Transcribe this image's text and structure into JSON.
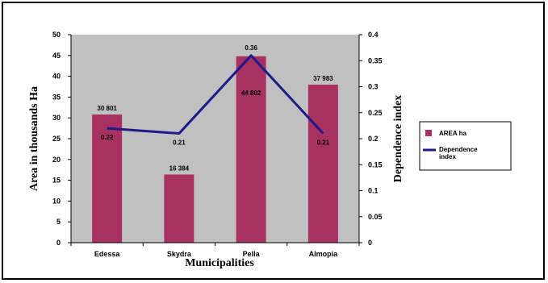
{
  "chart_data": {
    "type": "bar",
    "categories": [
      "Edessa",
      "Skydra",
      "Pella",
      "Almopia"
    ],
    "series": [
      {
        "name": "AREA ha",
        "kind": "bar",
        "axis": "left",
        "color": "#a83162",
        "values": [
          30.801,
          16.384,
          44.802,
          37.983
        ],
        "labels": [
          "30 801",
          "16 384",
          "44 802",
          "37 983"
        ]
      },
      {
        "name": "Dependence index",
        "kind": "line",
        "axis": "right",
        "color": "#1f1a8a",
        "values": [
          0.22,
          0.21,
          0.36,
          0.21
        ],
        "labels": [
          "0.22",
          "0.21",
          "0.36",
          "0.21"
        ]
      }
    ],
    "xlabel": "Municipalities",
    "ylabel": "Area in thousands Ha",
    "y2label": "Dependence index",
    "ylim": [
      0,
      50
    ],
    "y2lim": [
      0,
      0.4
    ],
    "yticks": [
      "0",
      "5",
      "10",
      "15",
      "20",
      "25",
      "30",
      "35",
      "40",
      "45",
      "50"
    ],
    "y2ticks": [
      "0",
      "0.05",
      "0.1",
      "0.15",
      "0.2",
      "0.25",
      "0.3",
      "0.35",
      "0.4"
    ],
    "plot_background": "#c0c0c0",
    "legend": [
      "AREA ha",
      "Dependence\nindex"
    ],
    "legend_position": "right",
    "grid": false
  }
}
